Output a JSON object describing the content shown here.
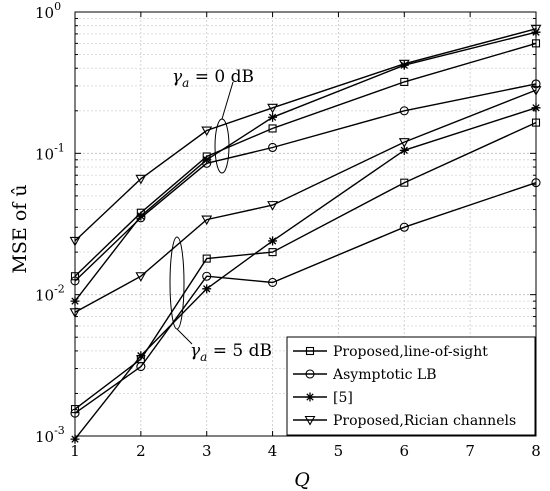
{
  "chart_data": {
    "type": "line",
    "xlabel": "Q",
    "ylabel": "MSE of û",
    "x_ticks": [
      "1",
      "2",
      "3",
      "4",
      "5",
      "6",
      "7",
      "8"
    ],
    "y_scale": "log",
    "y_ticks": [
      {
        "value": 0.001,
        "base": "10",
        "exp": "-3"
      },
      {
        "value": 0.01,
        "base": "10",
        "exp": "-2"
      },
      {
        "value": 0.1,
        "base": "10",
        "exp": "-1"
      },
      {
        "value": 1,
        "base": "10",
        "exp": "0"
      }
    ],
    "xlim": [
      1,
      8
    ],
    "ylim": [
      0.001,
      1
    ],
    "grid": true,
    "legend_position": "bottom-right",
    "annotations": [
      {
        "label": "γ_a = 0 dB",
        "prefix": "γ",
        "sub": "a",
        "text": " = 0 dB"
      },
      {
        "label": "γ_a = 5 dB",
        "prefix": "γ",
        "sub": "a",
        "text": " = 5 dB"
      }
    ],
    "legend": [
      {
        "name": "Proposed,line-of-sight",
        "marker": "square"
      },
      {
        "name": "Asymptotic LB",
        "marker": "circle"
      },
      {
        "name": "[5]",
        "marker": "star"
      },
      {
        "name": "Proposed,Rician channels",
        "marker": "triangle-down"
      }
    ],
    "series": [
      {
        "name": "Proposed,line-of-sight",
        "group": "γ_a = 0 dB",
        "marker": "square",
        "x": [
          1,
          2,
          3,
          4,
          6,
          8
        ],
        "y": [
          0.0135,
          0.038,
          0.095,
          0.15,
          0.32,
          0.6
        ]
      },
      {
        "name": "Asymptotic LB",
        "group": "γ_a = 0 dB",
        "marker": "circle",
        "x": [
          1,
          2,
          3,
          4,
          6,
          8
        ],
        "y": [
          0.0125,
          0.035,
          0.085,
          0.11,
          0.2,
          0.31
        ]
      },
      {
        "name": "[5]",
        "group": "γ_a = 0 dB",
        "marker": "star",
        "x": [
          1,
          2,
          3,
          4,
          6,
          8
        ],
        "y": [
          0.009,
          0.036,
          0.09,
          0.18,
          0.42,
          0.72
        ]
      },
      {
        "name": "Proposed,Rician channels",
        "group": "γ_a = 0 dB",
        "marker": "triangle-down",
        "x": [
          1,
          2,
          3,
          4,
          6,
          8
        ],
        "y": [
          0.024,
          0.066,
          0.145,
          0.21,
          0.43,
          0.76
        ]
      },
      {
        "name": "Proposed,line-of-sight",
        "group": "γ_a = 5 dB",
        "marker": "square",
        "x": [
          1,
          2,
          3,
          4,
          6,
          8
        ],
        "y": [
          0.00155,
          0.0035,
          0.018,
          0.02,
          0.062,
          0.165
        ]
      },
      {
        "name": "Asymptotic LB",
        "group": "γ_a = 5 dB",
        "marker": "circle",
        "x": [
          1,
          2,
          3,
          4,
          6,
          8
        ],
        "y": [
          0.00145,
          0.0031,
          0.0135,
          0.0122,
          0.03,
          0.062
        ]
      },
      {
        "name": "[5]",
        "group": "γ_a = 5 dB",
        "marker": "star",
        "x": [
          1,
          2,
          3,
          4,
          6,
          8
        ],
        "y": [
          0.00095,
          0.0037,
          0.011,
          0.024,
          0.105,
          0.21
        ]
      },
      {
        "name": "Proposed,Rician channels",
        "group": "γ_a = 5 dB",
        "marker": "triangle-down",
        "x": [
          1,
          2,
          3,
          4,
          6,
          8
        ],
        "y": [
          0.0075,
          0.0135,
          0.034,
          0.043,
          0.12,
          0.28
        ]
      }
    ]
  }
}
